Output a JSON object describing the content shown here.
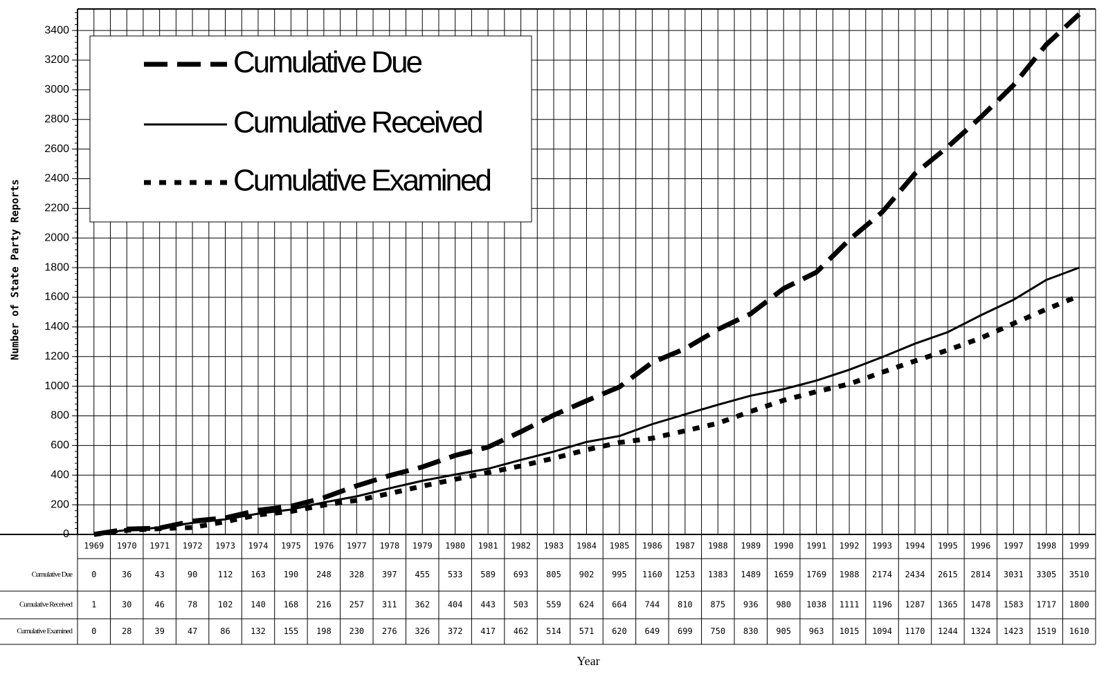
{
  "chart_data": {
    "type": "line",
    "y_label": "Number of State Party Reports",
    "x_label": "Year",
    "categories": [
      "1969",
      "1970",
      "1971",
      "1972",
      "1973",
      "1974",
      "1975",
      "1976",
      "1977",
      "1978",
      "1979",
      "1980",
      "1981",
      "1982",
      "1983",
      "1984",
      "1985",
      "1986",
      "1987",
      "1988",
      "1989",
      "1990",
      "1991",
      "1992",
      "1993",
      "1994",
      "1995",
      "1996",
      "1997",
      "1998",
      "1999"
    ],
    "series": [
      {
        "name": "Cumulative Due",
        "color": "#000000",
        "style": "dashed",
        "values": [
          0,
          36,
          43,
          90,
          112,
          163,
          190,
          248,
          328,
          397,
          455,
          533,
          589,
          693,
          805,
          902,
          995,
          1160,
          1253,
          1383,
          1489,
          1659,
          1769,
          1988,
          2174,
          2434,
          2615,
          2814,
          3031,
          3305,
          3510
        ]
      },
      {
        "name": "Cumulative Received",
        "color": "#000000",
        "style": "solid",
        "values": [
          1,
          30,
          46,
          78,
          102,
          140,
          168,
          216,
          257,
          311,
          362,
          404,
          443,
          503,
          559,
          624,
          664,
          744,
          810,
          875,
          936,
          980,
          1038,
          1111,
          1196,
          1287,
          1365,
          1478,
          1583,
          1717,
          1800
        ]
      },
      {
        "name": "Cumulative Examined",
        "color": "#000000",
        "style": "dotted",
        "values": [
          0,
          28,
          39,
          47,
          86,
          132,
          155,
          198,
          230,
          276,
          326,
          372,
          417,
          462,
          514,
          571,
          620,
          649,
          699,
          750,
          830,
          905,
          963,
          1015,
          1094,
          1170,
          1244,
          1324,
          1423,
          1519,
          1610
        ]
      }
    ],
    "ylim": [
      0,
      3545
    ],
    "yticks": [
      0,
      200,
      400,
      600,
      800,
      1000,
      1200,
      1400,
      1600,
      1800,
      2000,
      2200,
      2400,
      2600,
      2800,
      3000,
      3200,
      3400
    ],
    "grid": true
  }
}
